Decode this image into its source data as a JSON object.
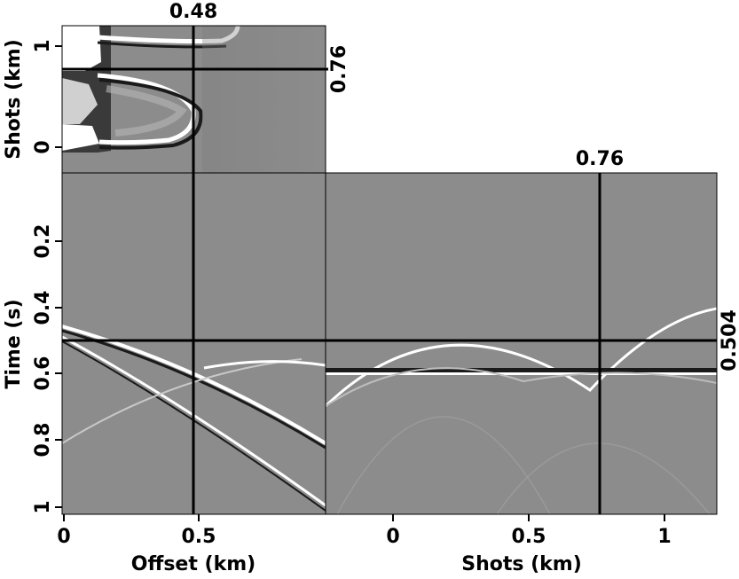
{
  "chart_data": [
    {
      "type": "heatmap",
      "panel": "top-left",
      "xlabel": "",
      "ylabel": "Shots (km)",
      "xlim": [
        0,
        1
      ],
      "ylim": [
        -0.2,
        1.2
      ],
      "y_ticks": [
        "0",
        "1"
      ],
      "crosshair": {
        "x": 0.48,
        "y": 0.76,
        "x_label": "0.48",
        "y_label": "0.76"
      },
      "colormap": "grayscale"
    },
    {
      "type": "heatmap",
      "panel": "bottom-left",
      "xlabel": "Offset (km)",
      "ylabel": "Time (s)",
      "xlim": [
        0,
        0.97
      ],
      "ylim": [
        1.0,
        0.0
      ],
      "x_ticks": [
        "0",
        "0.5"
      ],
      "y_ticks": [
        "0.2",
        "0.4",
        "0.6",
        "0.8",
        "1"
      ],
      "crosshair": {
        "x": 0.48,
        "y": 0.504
      },
      "colormap": "grayscale"
    },
    {
      "type": "heatmap",
      "panel": "bottom-right",
      "xlabel": "Shots (km)",
      "ylabel": "",
      "xlim": [
        -0.24,
        1.2
      ],
      "ylim": [
        1.0,
        0.0
      ],
      "x_ticks": [
        "0",
        "0.5",
        "1"
      ],
      "crosshair": {
        "x": 0.76,
        "y": 0.504,
        "x_label": "0.76",
        "y_label": "0.504"
      },
      "colormap": "grayscale"
    }
  ],
  "labels": {
    "top_crosshair": "0.48",
    "top_right_crosshair": "0.76",
    "right_top_crosshair": "0.76",
    "right_side_crosshair": "0.504",
    "shots_axis": "Shots (km)",
    "time_axis": "Time (s)",
    "offset_axis": "Offset (km)",
    "shots_axis_bottom": "Shots (km)"
  },
  "ticks": {
    "shots_left": [
      "1",
      "0"
    ],
    "time": [
      "0.2",
      "0.4",
      "0.6",
      "0.8",
      "1"
    ],
    "offset": [
      "0",
      "0.5"
    ],
    "shots_bottom": [
      "0",
      "0.5",
      "1"
    ]
  },
  "colors": {
    "background_gray": "#8c8c8c",
    "line": "#000000",
    "bright": "#ffffff"
  }
}
